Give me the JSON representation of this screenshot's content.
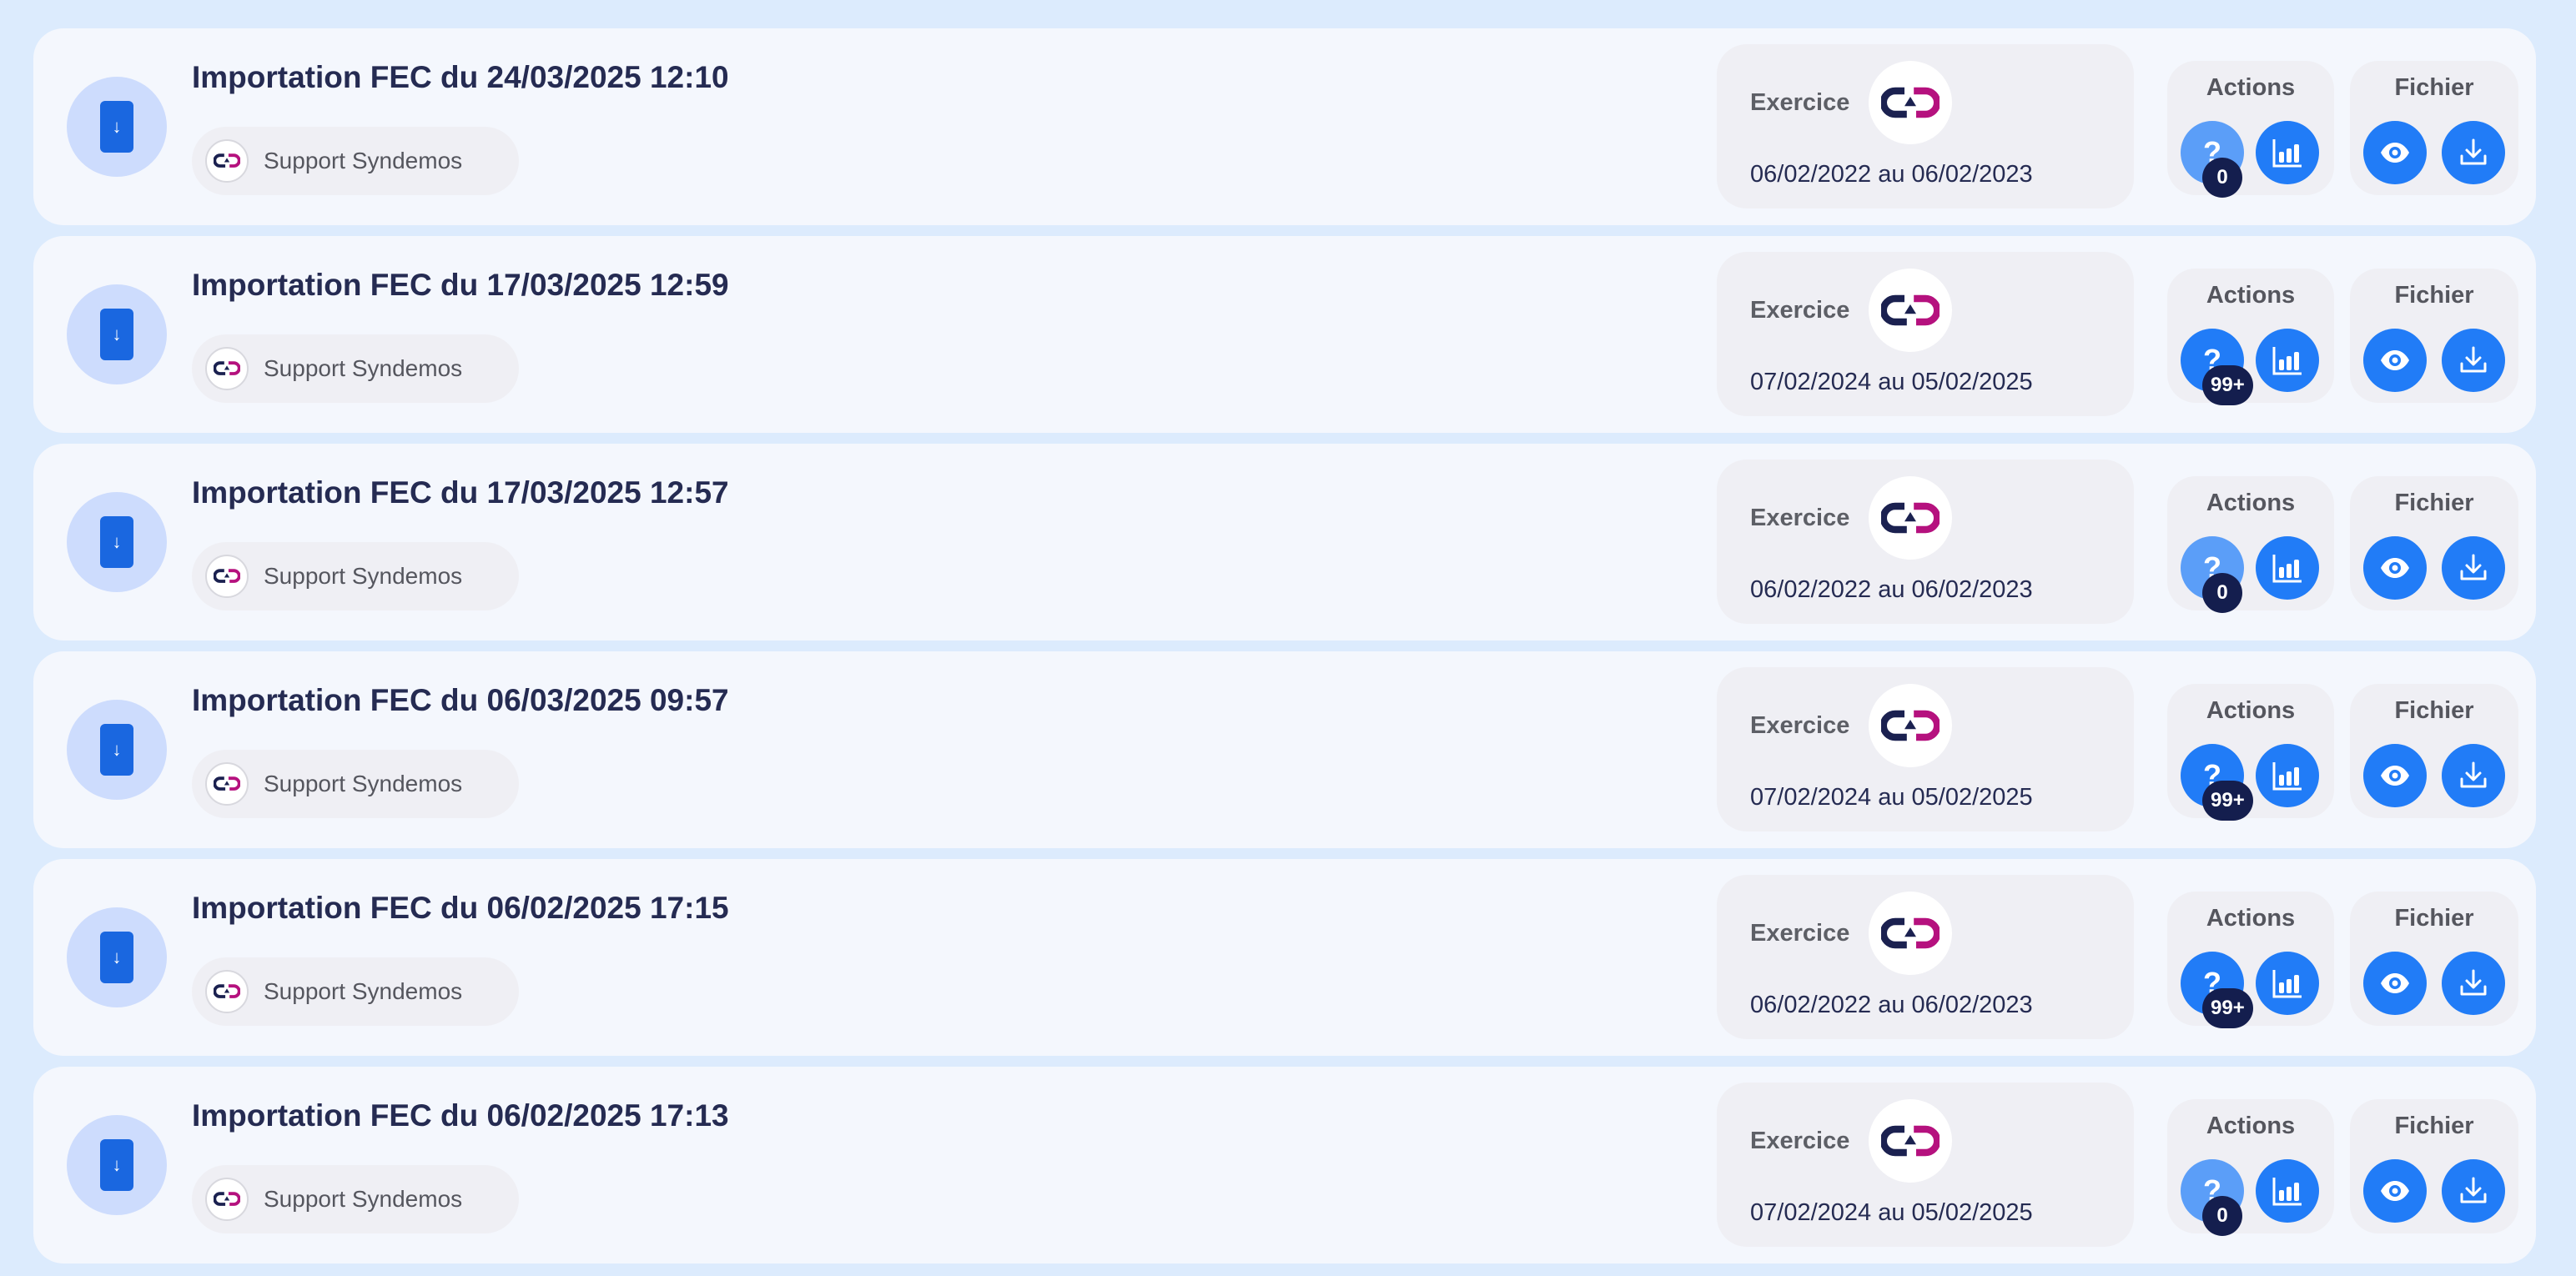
{
  "colors": {
    "accent": "#217cf7",
    "accent_muted": "#5b9ef8",
    "badge": "#141e4e",
    "logo_dark": "#1b2150",
    "logo_pink": "#b5117e"
  },
  "labels": {
    "exercice": "Exercice",
    "actions": "Actions",
    "file": "Fichier"
  },
  "icons": {
    "lead": "download-file-icon",
    "avatar": "syndemos-logo-icon",
    "questions": "question-icon",
    "stats": "bar-chart-icon",
    "view": "eye-icon",
    "download": "download-icon"
  },
  "rows": [
    {
      "title": "Importation FEC du 24/03/2025 12:10",
      "user": "Support Syndemos",
      "exercice": "06/02/2022 au 06/02/2023",
      "questions": "0"
    },
    {
      "title": "Importation FEC du 17/03/2025 12:59",
      "user": "Support Syndemos",
      "exercice": "07/02/2024 au 05/02/2025",
      "questions": "99+"
    },
    {
      "title": "Importation FEC du 17/03/2025 12:57",
      "user": "Support Syndemos",
      "exercice": "06/02/2022 au 06/02/2023",
      "questions": "0"
    },
    {
      "title": "Importation FEC du 06/03/2025 09:57",
      "user": "Support Syndemos",
      "exercice": "07/02/2024 au 05/02/2025",
      "questions": "99+"
    },
    {
      "title": "Importation FEC du 06/02/2025 17:15",
      "user": "Support Syndemos",
      "exercice": "06/02/2022 au 06/02/2023",
      "questions": "99+"
    },
    {
      "title": "Importation FEC du 06/02/2025 17:13",
      "user": "Support Syndemos",
      "exercice": "07/02/2024 au 05/02/2025",
      "questions": "0"
    }
  ]
}
